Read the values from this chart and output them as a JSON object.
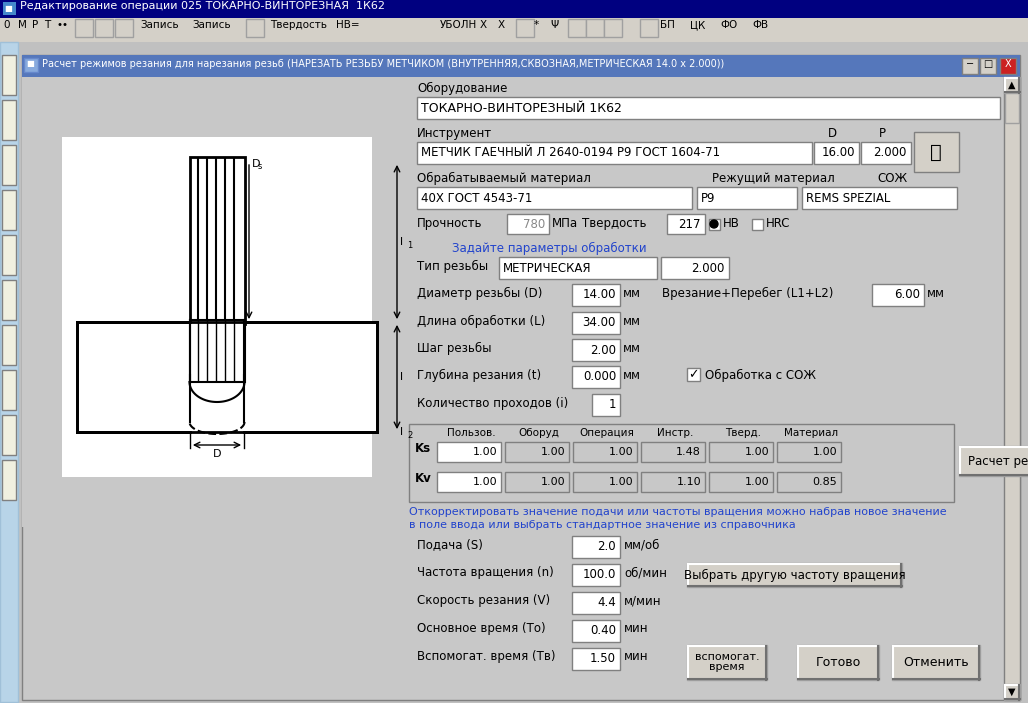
{
  "title_bar": "Редактирование операции 025 ТОКАРНО-ВИНТОРЕЗНАЯ  1К62",
  "dialog_title": "Расчет режимов резания для нарезания резьб (НАРЕЗАТЬ РЕЗЬБУ МЕТЧИКОМ (ВНУТРЕННЯЯ,СКВОЗНАЯ,МЕТРИЧЕСКАЯ 14.0 x 2.000))",
  "bg_color": "#c0c0c0",
  "dialog_bg": "#c8c8c8",
  "title_bg": "#6688bb",
  "light_gray": "#d4d0c8",
  "dark_gray": "#808080",
  "blue_text": "#2244cc",
  "section_oborudovanie": "Оборудование",
  "oborudovanie_val": "ТОКАРНО-ВИНТОРЕЗНЫЙ 1К62",
  "section_instrument": "Инструмент",
  "d_label": "D",
  "p_label": "P",
  "instrument_val": "МЕТЧИК ГАЕЧНЫЙ Л 2640-0194 Р9 ГОСТ 1604-71",
  "d_val": "16.00",
  "p_val": "2.000",
  "section_material": "Обрабатываемый материал",
  "rezhush_mat": "Режущий материал",
  "soj_label": "СОЖ",
  "material_val": "40Х ГОСТ 4543-71",
  "rezhush_val": "Р9",
  "soj_val": "REMS SPEZIAL",
  "prochnost_label": "Прочность",
  "prochnost_val": "780",
  "mpa_label": "МПа",
  "tverdost_label": "Твердость",
  "tverdost_val": "217",
  "hb_label": "HB",
  "hrc_label": "HRC",
  "zadayte": "Задайте параметры обработки",
  "tip_rezby_label": "Тип резьбы",
  "tip_rezby_val": "МЕТРИЧЕСКАЯ",
  "tip_rezby_val2": "2.000",
  "diam_label": "Диаметр резьбы (D)",
  "diam_val": "14.00",
  "mm1": "мм",
  "vrezanie_label": "Врезание+Перебег (L1+L2)",
  "vrezanie_val": "6.00",
  "mm2": "мм",
  "dlina_label": "Длина обработки (L)",
  "dlina_val": "34.00",
  "mm3": "мм",
  "shag_label": "Шаг резьбы",
  "shag_val": "2.00",
  "mm4": "мм",
  "glubina_label": "Глубина резания (t)",
  "glubina_val": "0.000",
  "mm5": "мм",
  "obrabotka_soj": "Обработка с СОЖ",
  "kolvo_label": "Количество проходов (i)",
  "kolvo_val": "1",
  "table_headers": [
    "Пользов.",
    "Оборуд",
    "Операция",
    "Инстр.",
    "Тверд.",
    "Материал"
  ],
  "ks_label": "Ks",
  "kv_label": "Kv",
  "ks_row": [
    "1.00",
    "1.00",
    "1.00",
    "1.48",
    "1.00",
    "1.00"
  ],
  "kv_row": [
    "1.00",
    "1.00",
    "1.00",
    "1.10",
    "1.00",
    "0.85"
  ],
  "raschet_btn": "Расчет режимов резания",
  "hint_text1": "Откорректировать значение подачи или частоты вращения можно набрав новое значение",
  "hint_text2": "в поле ввода или выбрать стандартное значение из справочника",
  "podacha_label": "Подача (S)",
  "podacha_val": "2.0",
  "mm_ob": "мм/об",
  "chastota_label": "Частота вращения (n)",
  "chastota_val": "100.0",
  "ob_min": "об/мин",
  "vybrat_btn": "Выбрать другую частоту вращения",
  "skorost_label": "Скорость резания (V)",
  "skorost_val": "4.4",
  "m_min": "м/мин",
  "osnov_label": "Основное время (То)",
  "osnov_val": "0.40",
  "min1": "мин",
  "vspomog_label": "Вспомогат. время (Тв)",
  "vspomog_val": "1.50",
  "min2": "мин",
  "vspomog_btn": "вспомогат.\nвремя",
  "gotovo_btn": "Готово",
  "otmenit_btn": "Отменить",
  "scrollbar_btn": "▲",
  "left_panel_color": "#b8d4e8"
}
